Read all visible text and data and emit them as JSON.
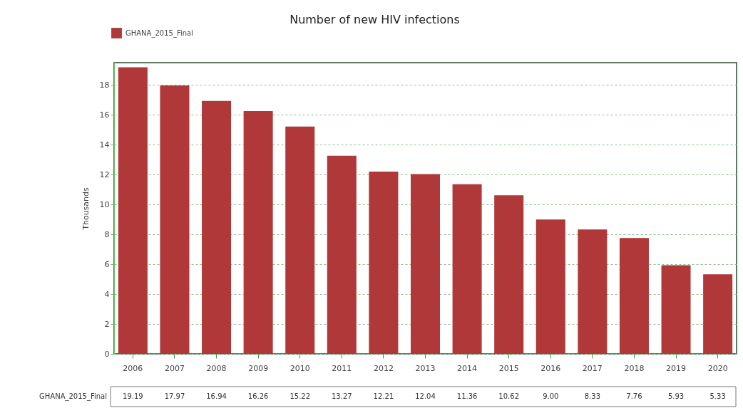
{
  "chart_data": {
    "type": "bar",
    "title": "Number of new HIV infections",
    "ylabel": "Thousands",
    "categories": [
      "2006",
      "2007",
      "2008",
      "2009",
      "2010",
      "2011",
      "2012",
      "2013",
      "2014",
      "2015",
      "2016",
      "2017",
      "2018",
      "2019",
      "2020"
    ],
    "series": [
      {
        "name": "GHANA_2015_Final",
        "color": "#b03838",
        "values": [
          19.19,
          17.97,
          16.94,
          16.26,
          15.22,
          13.27,
          12.21,
          12.04,
          11.36,
          10.62,
          9.0,
          8.33,
          7.76,
          5.93,
          5.33
        ],
        "value_labels": [
          "19.19",
          "17.97",
          "16.94",
          "16.26",
          "15.22",
          "13.27",
          "12.21",
          "12.04",
          "11.36",
          "10.62",
          "9.00",
          "8.33",
          "7.76",
          "5.93",
          "5.33"
        ]
      }
    ],
    "ylim": [
      0,
      19.5
    ],
    "yticks": [
      0,
      2,
      4,
      6,
      8,
      10,
      12,
      14,
      16,
      18
    ],
    "grid": "y",
    "legend": "top left"
  }
}
